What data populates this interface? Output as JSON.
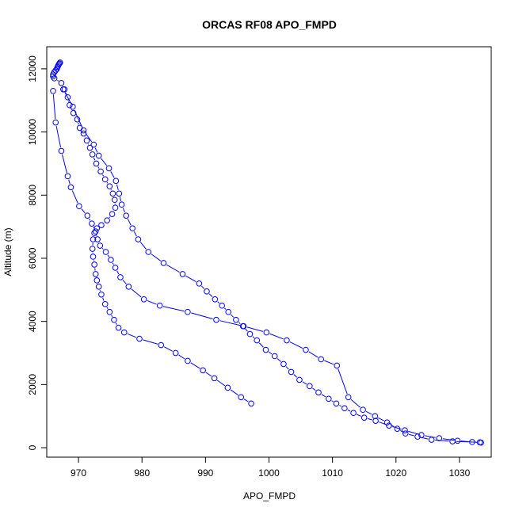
{
  "chart_data": {
    "type": "scatter",
    "title": "ORCAS RF08 APO_FMPD",
    "xlabel": "APO_FMPD",
    "ylabel": "Altitude (m)",
    "xlim": [
      965,
      1035
    ],
    "ylim": [
      -300,
      12700
    ],
    "xticks": [
      970,
      980,
      990,
      1000,
      1010,
      1020,
      1030
    ],
    "yticks": [
      0,
      2000,
      4000,
      6000,
      8000,
      10000,
      12000
    ],
    "grid": false,
    "legend": "none",
    "line_style": "lines-and-points",
    "marker": "open-circle",
    "color": "#0000ff",
    "series": [
      {
        "x": [
          967.1,
          967.0,
          966.9,
          966.8,
          966.7,
          966.6,
          966.4,
          966.2,
          966.0,
          966.0,
          966.2,
          967.3,
          967.8,
          968.3,
          968.6,
          969.2,
          969.8,
          970.2,
          970.8,
          971.3,
          971.8,
          972.2,
          972.8,
          973.5,
          974.2,
          974.9,
          975.4,
          975.7,
          975.8,
          975.3,
          974.5,
          973.6,
          972.9,
          972.5,
          972.3,
          972.2,
          972.3,
          972.5,
          972.7,
          972.9,
          973.2,
          973.6,
          974.2,
          974.9,
          975.6,
          976.3,
          977.2,
          979.6,
          983.0,
          985.3,
          987.2,
          989.6,
          991.4,
          993.5,
          995.6,
          997.2
        ],
        "y": [
          12200,
          12170,
          12140,
          12100,
          12060,
          12000,
          11950,
          11900,
          11820,
          11760,
          11700,
          11550,
          11350,
          11100,
          10850,
          10600,
          10400,
          10130,
          9950,
          9730,
          9500,
          9290,
          9000,
          8750,
          8500,
          8280,
          8050,
          7850,
          7600,
          7400,
          7200,
          7050,
          6950,
          6800,
          6600,
          6300,
          6050,
          5800,
          5500,
          5300,
          5100,
          4850,
          4550,
          4300,
          4050,
          3800,
          3650,
          3450,
          3250,
          3000,
          2750,
          2450,
          2200,
          1900,
          1600,
          1400
        ]
      },
      {
        "x": [
          966.0,
          966.4,
          967.3,
          968.3,
          968.8,
          970.1,
          971.4,
          972.1,
          972.7,
          973.0,
          973.4,
          974.3,
          975.1,
          975.8,
          976.6,
          977.9,
          980.3,
          982.8,
          987.2,
          991.7,
          996.0,
          999.6,
          1002.8,
          1005.8,
          1008.2,
          1010.7,
          1012.5,
          1014.8,
          1016.7,
          1018.6,
          1020.2,
          1021.5,
          1023.4,
          1025.6,
          1028.9,
          1033.2
        ],
        "y": [
          11300,
          10300,
          9400,
          8600,
          8250,
          7650,
          7350,
          7100,
          6850,
          6600,
          6400,
          6200,
          5950,
          5700,
          5400,
          5100,
          4700,
          4500,
          4300,
          4050,
          3850,
          3650,
          3400,
          3100,
          2800,
          2600,
          1600,
          1200,
          1000,
          800,
          600,
          450,
          350,
          250,
          200,
          170
        ]
      },
      {
        "x": [
          967.6,
          969.1,
          970.8,
          972.4,
          973.2,
          974.8,
          975.9,
          976.4,
          976.8,
          977.5,
          978.5,
          979.4,
          981.0,
          983.4,
          986.4,
          989.0,
          990.2,
          991.5,
          992.6,
          993.6,
          994.8,
          995.9,
          997.0,
          998.1,
          999.5,
          1000.9,
          1002.3,
          1003.5,
          1004.8,
          1006.4,
          1007.8,
          1009.4,
          1010.6,
          1011.9,
          1013.3,
          1015.0,
          1016.8,
          1018.9,
          1021.4,
          1024.0,
          1026.8,
          1029.7,
          1032.0,
          1033.4
        ],
        "y": [
          11350,
          10800,
          10050,
          9600,
          9250,
          8850,
          8450,
          8050,
          7700,
          7350,
          6950,
          6600,
          6200,
          5850,
          5500,
          5200,
          4950,
          4700,
          4500,
          4300,
          4050,
          3850,
          3600,
          3400,
          3100,
          2900,
          2650,
          2400,
          2150,
          1950,
          1750,
          1550,
          1400,
          1250,
          1100,
          950,
          850,
          700,
          550,
          400,
          300,
          220,
          180,
          160
        ]
      }
    ]
  }
}
